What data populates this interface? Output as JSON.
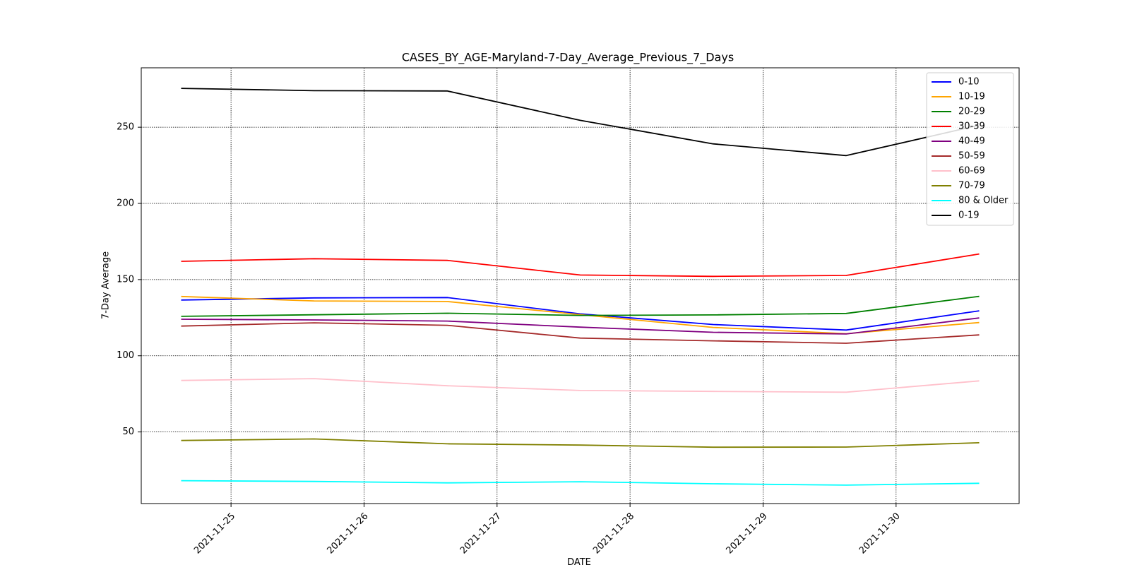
{
  "chart_data": {
    "type": "line",
    "title": "CASES_BY_AGE-Maryland-7-Day_Average_Previous_7_Days",
    "xlabel": "DATE",
    "ylabel": "7-Day Average",
    "x": [
      "2021-11-24 15:00",
      "2021-11-25 15:00",
      "2021-11-26 15:00",
      "2021-11-27 15:00",
      "2021-11-28 15:00",
      "2021-11-29 15:00",
      "2021-11-30 15:00"
    ],
    "x_ticks": [
      "2021-11-25",
      "2021-11-26",
      "2021-11-27",
      "2021-11-28",
      "2021-11-29",
      "2021-11-30"
    ],
    "y_ticks": [
      50,
      100,
      150,
      200,
      250
    ],
    "ylim": [
      3,
      289
    ],
    "grid": true,
    "legend_position": "top-right",
    "series": [
      {
        "name": "0-10",
        "color": "#0000ff",
        "values": [
          136.6,
          138.0,
          138.2,
          127.5,
          120.5,
          116.9,
          129.5
        ]
      },
      {
        "name": "10-19",
        "color": "#ffa500",
        "values": [
          138.9,
          136.0,
          135.6,
          127.0,
          118.6,
          114.5,
          121.8
        ]
      },
      {
        "name": "20-29",
        "color": "#008000",
        "values": [
          125.9,
          126.9,
          127.9,
          126.5,
          126.8,
          127.8,
          139.0
        ]
      },
      {
        "name": "30-39",
        "color": "#ff0000",
        "values": [
          162.0,
          163.7,
          162.6,
          153.0,
          152.1,
          152.7,
          166.8
        ]
      },
      {
        "name": "40-49",
        "color": "#800080",
        "values": [
          124.0,
          123.5,
          122.8,
          118.8,
          115.4,
          114.3,
          124.8
        ]
      },
      {
        "name": "50-59",
        "color": "#a52a2a",
        "values": [
          119.5,
          121.6,
          120.0,
          111.6,
          109.8,
          108.2,
          113.7
        ]
      },
      {
        "name": "60-69",
        "color": "#ffc0cb",
        "values": [
          83.8,
          85.0,
          80.3,
          77.2,
          76.6,
          76.1,
          83.5
        ]
      },
      {
        "name": "70-79",
        "color": "#808000",
        "values": [
          44.4,
          45.4,
          42.2,
          41.4,
          40.0,
          40.1,
          42.9
        ]
      },
      {
        "name": "80 & Older",
        "color": "#00ffff",
        "values": [
          18.0,
          17.5,
          16.6,
          17.3,
          16.0,
          15.1,
          16.3
        ]
      },
      {
        "name": "0-19",
        "color": "#000000",
        "values": [
          275.5,
          274.0,
          273.8,
          254.5,
          239.1,
          231.4,
          251.3
        ]
      }
    ]
  }
}
